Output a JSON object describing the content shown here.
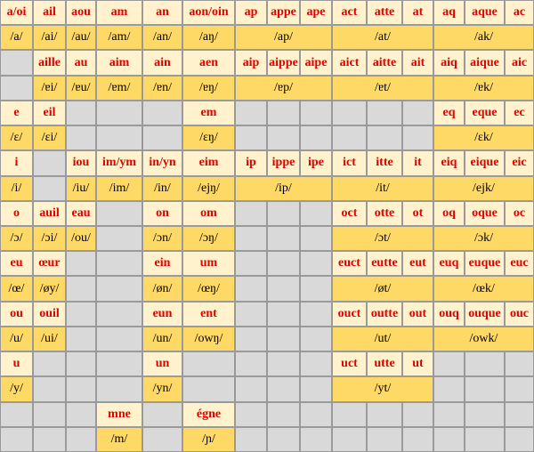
{
  "table": {
    "rows": [
      [
        "a/oi",
        "ail",
        "aou",
        "am",
        "an",
        "aon/oin",
        "ap",
        "appe",
        "ape",
        "act",
        "atte",
        "at",
        "aq",
        "aque",
        "ac"
      ],
      [
        "/a/",
        "/ai/",
        "/au/",
        "/am/",
        "/an/",
        "/aŋ/",
        "/ap/",
        "/at/",
        "/ak/"
      ],
      [
        null,
        "aille",
        "au",
        "aim",
        "ain",
        "aen",
        "aip",
        "aippe",
        "aipe",
        "aict",
        "aitte",
        "ait",
        "aiq",
        "aique",
        "aic"
      ],
      [
        null,
        "/ɐi/",
        "/ɐu/",
        "/ɐm/",
        "/ɐn/",
        "/ɐŋ/",
        "/ɐp/",
        "/ɐt/",
        "/ɐk/"
      ],
      [
        "e",
        "eil",
        null,
        null,
        null,
        "em",
        null,
        null,
        null,
        null,
        null,
        null,
        "eq",
        "eque",
        "ec"
      ],
      [
        "/ɛ/",
        "/ɛi/",
        null,
        null,
        null,
        "/ɛŋ/",
        null,
        null,
        "/ɛk/"
      ],
      [
        "i",
        null,
        "iou",
        "im/ym",
        "in/yn",
        "eim",
        "ip",
        "ippe",
        "ipe",
        "ict",
        "itte",
        "it",
        "eiq",
        "eique",
        "eic"
      ],
      [
        "/i/",
        null,
        "/iu/",
        "/im/",
        "/in/",
        "/ejŋ/",
        "/ip/",
        "/it/",
        "/ejk/"
      ],
      [
        "o",
        "auil",
        "eau",
        null,
        "on",
        "om",
        null,
        null,
        null,
        "oct",
        "otte",
        "ot",
        "oq",
        "oque",
        "oc"
      ],
      [
        "/ɔ/",
        "/ɔi/",
        "/ou/",
        null,
        "/ɔn/",
        "/ɔŋ/",
        null,
        "/ɔt/",
        "/ɔk/"
      ],
      [
        "eu",
        "œur",
        null,
        null,
        "ein",
        "um",
        null,
        null,
        null,
        "euct",
        "eutte",
        "eut",
        "euq",
        "euque",
        "euc"
      ],
      [
        "/œ/",
        "/øy/",
        null,
        null,
        "/øn/",
        "/œŋ/",
        null,
        "/øt/",
        "/œk/"
      ],
      [
        "ou",
        "ouil",
        null,
        null,
        "eun",
        "ent",
        null,
        null,
        null,
        "ouct",
        "outte",
        "out",
        "ouq",
        "ouque",
        "ouc"
      ],
      [
        "/u/",
        "/ui/",
        null,
        null,
        "/un/",
        "/owŋ/",
        null,
        "/ut/",
        "/owk/"
      ],
      [
        "u",
        null,
        null,
        null,
        "un",
        null,
        null,
        null,
        null,
        "uct",
        "utte",
        "ut",
        null,
        null,
        null
      ],
      [
        "/y/",
        null,
        null,
        null,
        "/yn/",
        null,
        null,
        "/yt/",
        null
      ],
      [
        null,
        null,
        null,
        "mne",
        null,
        "égne",
        null,
        null,
        null,
        null,
        null,
        null,
        null,
        null,
        null
      ],
      [
        null,
        null,
        null,
        "/m/",
        null,
        "/ɲ/",
        null,
        null,
        null
      ]
    ]
  }
}
